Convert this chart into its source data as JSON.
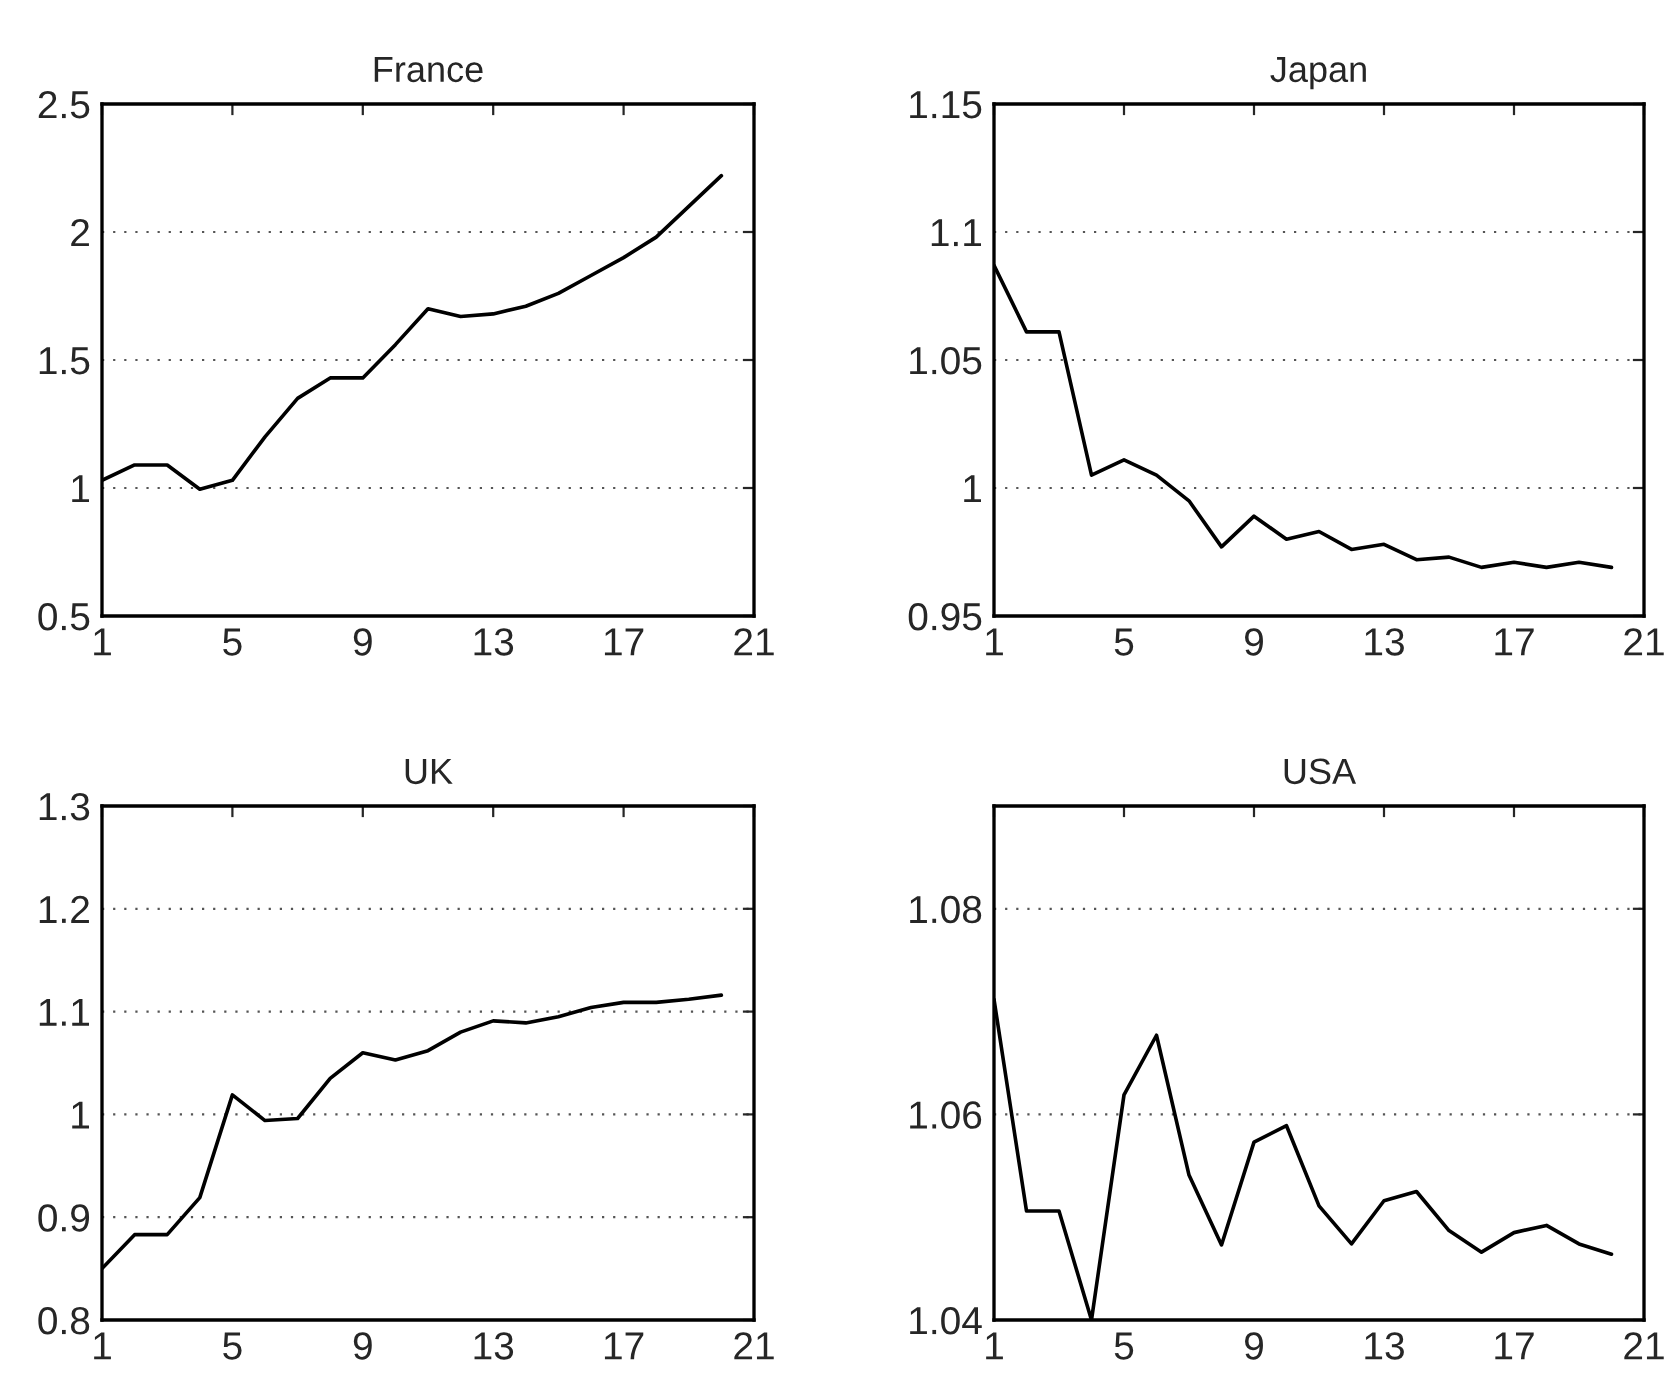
{
  "chart_data": [
    {
      "type": "line",
      "title": "France",
      "x": [
        1,
        2,
        3,
        4,
        5,
        6,
        7,
        8,
        9,
        10,
        11,
        12,
        13,
        14,
        15,
        16,
        17,
        18,
        19,
        20
      ],
      "series": [
        {
          "color": "#000000",
          "values": [
            1.03,
            1.09,
            1.09,
            0.995,
            1.03,
            1.2,
            1.35,
            1.43,
            1.43,
            1.56,
            1.7,
            1.67,
            1.68,
            1.71,
            1.76,
            1.83,
            1.9,
            1.98,
            2.1,
            2.22
          ]
        }
      ],
      "xlim": [
        1,
        21
      ],
      "xticks": [
        1,
        5,
        9,
        13,
        17,
        21
      ],
      "ylim": [
        0.5,
        2.5
      ],
      "yticks": [
        0.5,
        1,
        1.5,
        2,
        2.5
      ],
      "grid": "y"
    },
    {
      "type": "line",
      "title": "Japan",
      "x": [
        1,
        2,
        3,
        4,
        5,
        6,
        7,
        8,
        9,
        10,
        11,
        12,
        13,
        14,
        15,
        16,
        17,
        18,
        19,
        20
      ],
      "series": [
        {
          "color": "#000000",
          "values": [
            1.087,
            1.061,
            1.061,
            1.005,
            1.011,
            1.005,
            0.995,
            0.977,
            0.989,
            0.98,
            0.983,
            0.976,
            0.978,
            0.972,
            0.973,
            0.969,
            0.971,
            0.969,
            0.971,
            0.969
          ]
        }
      ],
      "xlim": [
        1,
        21
      ],
      "xticks": [
        1,
        5,
        9,
        13,
        17,
        21
      ],
      "ylim": [
        0.95,
        1.15
      ],
      "yticks": [
        0.95,
        1,
        1.05,
        1.1,
        1.15
      ],
      "grid": "y"
    },
    {
      "type": "line",
      "title": "UK",
      "x": [
        1,
        2,
        3,
        4,
        5,
        6,
        7,
        8,
        9,
        10,
        11,
        12,
        13,
        14,
        15,
        16,
        17,
        18,
        19,
        20
      ],
      "series": [
        {
          "color": "#000000",
          "values": [
            0.85,
            0.883,
            0.883,
            0.919,
            1.019,
            0.994,
            0.996,
            1.035,
            1.06,
            1.053,
            1.062,
            1.08,
            1.091,
            1.089,
            1.095,
            1.104,
            1.109,
            1.109,
            1.112,
            1.116
          ]
        }
      ],
      "xlim": [
        1,
        21
      ],
      "xticks": [
        1,
        5,
        9,
        13,
        17,
        21
      ],
      "ylim": [
        0.8,
        1.3
      ],
      "yticks": [
        0.8,
        0.9,
        1,
        1.1,
        1.2,
        1.3
      ],
      "grid": "y"
    },
    {
      "type": "line",
      "title": "USA",
      "x": [
        1,
        2,
        3,
        4,
        5,
        6,
        7,
        8,
        9,
        10,
        11,
        12,
        13,
        14,
        15,
        16,
        17,
        18,
        19,
        20
      ],
      "series": [
        {
          "color": "#000000",
          "values": [
            1.0712,
            1.0506,
            1.0506,
            1.04,
            1.0619,
            1.0677,
            1.0541,
            1.0473,
            1.0573,
            1.0589,
            1.0511,
            1.0474,
            1.0516,
            1.0525,
            1.0487,
            1.0466,
            1.0485,
            1.0492,
            1.0474,
            1.0464
          ]
        }
      ],
      "xlim": [
        1,
        21
      ],
      "xticks": [
        1,
        5,
        9,
        13,
        17,
        21
      ],
      "ylim": [
        1.04,
        1.09
      ],
      "yticks": [
        1.04,
        1.06,
        1.08
      ],
      "grid": "y"
    }
  ]
}
